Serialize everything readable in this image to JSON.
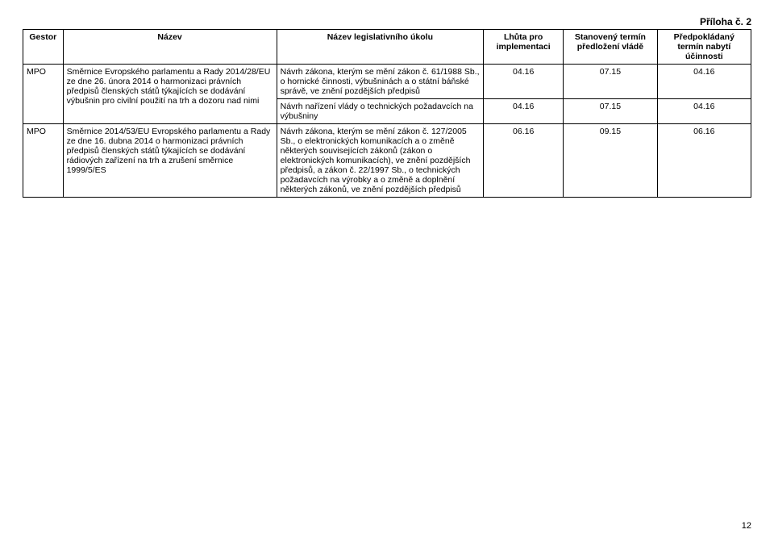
{
  "attachment_label": "Příloha č. 2",
  "headers": {
    "gestor": "Gestor",
    "nazev": "Název",
    "ukol": "Název legislativního úkolu",
    "lhuta": "Lhůta pro implementaci",
    "termin": "Stanovený termín předložení vládě",
    "ucinnost": "Předpokládaný termín nabytí účinnosti"
  },
  "rows": [
    {
      "gestor": "MPO",
      "nazev": "Směrnice Evropského parlamentu a Rady 2014/28/EU ze dne 26. února 2014 o harmonizaci právních předpisů členských států týkajících se dodávání výbušnin pro civilní použití na trh a dozoru nad nimi",
      "ukol": "Návrh zákona, kterým se mění zákon č. 61/1988 Sb., o hornické činnosti, výbušninách a o státní báňské správě, ve znění pozdějších předpisů",
      "lhuta": "04.16",
      "termin": "07.15",
      "ucinnost": "04.16"
    },
    {
      "ukol": "Návrh nařízení vlády o technických požadavcích na výbušniny",
      "lhuta": "04.16",
      "termin": "07.15",
      "ucinnost": "04.16"
    },
    {
      "gestor": "MPO",
      "nazev": "Směrnice 2014/53/EU Evropského parlamentu a Rady ze dne 16. dubna 2014 o harmonizaci právních předpisů členských států týkajících se dodávání rádiových zařízení na trh a zrušení směrnice 1999/5/ES",
      "ukol": "Návrh zákona, kterým se mění zákon č. 127/2005 Sb., o elektronických komunikacích a o změně některých souvisejících zákonů (zákon o elektronických komunikacích), ve znění pozdějších předpisů, a zákon č. 22/1997 Sb., o technických požadavcích na výrobky a o změně a doplnění některých zákonů, ve znění pozdějších předpisů",
      "lhuta": "06.16",
      "termin": "09.15",
      "ucinnost": "06.16"
    }
  ],
  "page_number": "12",
  "colors": {
    "text": "#000000",
    "background": "#ffffff",
    "border": "#000000"
  },
  "fonts": {
    "family": "Arial",
    "body_pt": 10.5,
    "header_pt": 10.5,
    "attachment_pt": 12
  }
}
